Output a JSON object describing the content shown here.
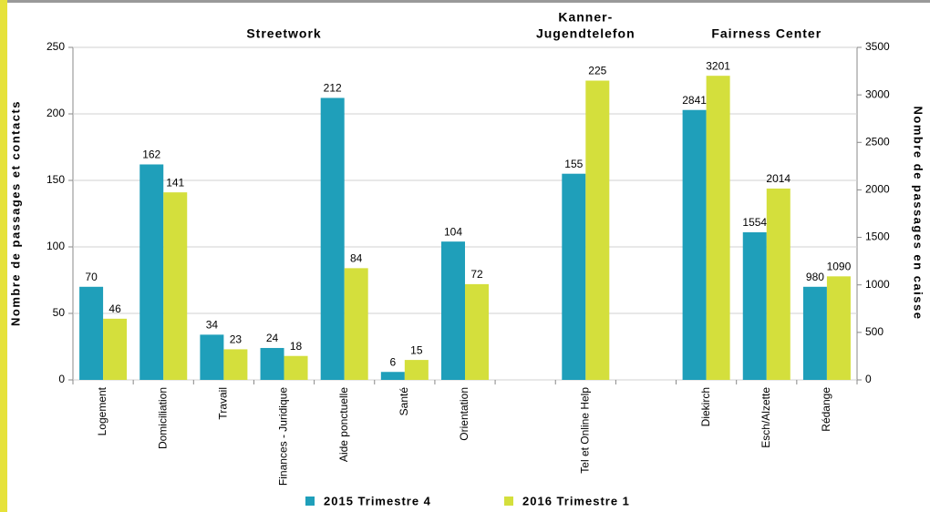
{
  "chart_data": {
    "type": "bar",
    "categories": [
      "Logement",
      "Domiciliation",
      "Travail",
      "Finances - Juridique",
      "Aide ponctuelle",
      "Santé",
      "Orientation",
      null,
      "Tel et Online Help",
      null,
      "Diekirch",
      "Esch/Alzette",
      "Rédange"
    ],
    "series": [
      {
        "name": "2015 Trimestre 4",
        "color": "#1f9fba",
        "values": [
          70,
          162,
          34,
          24,
          212,
          6,
          104,
          null,
          155,
          null,
          null,
          null,
          null
        ],
        "y2_values": [
          null,
          null,
          null,
          null,
          null,
          null,
          null,
          null,
          null,
          null,
          2841,
          1554,
          980
        ]
      },
      {
        "name": "2016 Trimestre 1",
        "color": "#d4df3c",
        "values": [
          46,
          141,
          23,
          18,
          84,
          15,
          72,
          null,
          225,
          null,
          null,
          null,
          null
        ],
        "y2_values": [
          null,
          null,
          null,
          null,
          null,
          null,
          null,
          null,
          null,
          null,
          3201,
          2014,
          1090
        ]
      }
    ],
    "ylim": [
      0,
      250
    ],
    "yticks": [
      0,
      50,
      100,
      150,
      200,
      250
    ],
    "y2lim": [
      0,
      3500
    ],
    "y2ticks": [
      0,
      500,
      1000,
      1500,
      2000,
      2500,
      3000,
      3500
    ],
    "ylabel": "Nombre de passages et contacts",
    "y2label": "Nombre de passages en caisse",
    "annotations": [
      [
        "Streetwork"
      ],
      [
        "Kanner-",
        "Jugendtelefon"
      ],
      [
        "Fairness Center"
      ]
    ],
    "legend": "bottom"
  }
}
